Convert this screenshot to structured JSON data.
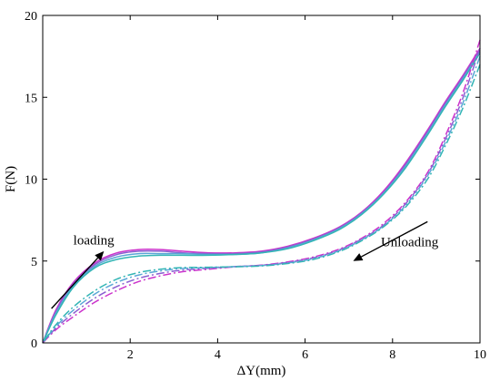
{
  "chart_data": {
    "type": "line",
    "xlabel": "ΔY(mm)",
    "ylabel": "F(N)",
    "xlim": [
      0,
      10
    ],
    "ylim": [
      0,
      20
    ],
    "x_ticks": [
      2,
      4,
      6,
      8,
      10
    ],
    "y_ticks": [
      0,
      5,
      10,
      15,
      20
    ],
    "x_tick_labels": [
      "2",
      "4",
      "6",
      "8",
      "10"
    ],
    "y_tick_labels": [
      "0",
      "5",
      "10",
      "15",
      "20"
    ],
    "origin_label": "0",
    "grid": false,
    "annotations": [
      {
        "text": "loading",
        "at": [
          0.7,
          6.0
        ]
      },
      {
        "text": "Unloading",
        "at": [
          9.05,
          5.9
        ]
      }
    ],
    "arrows": [
      {
        "name": "loading",
        "from": [
          0.2,
          2.1
        ],
        "to": [
          1.4,
          5.6
        ]
      },
      {
        "name": "unloading",
        "from": [
          8.8,
          7.4
        ],
        "to": [
          7.1,
          5.0
        ]
      }
    ],
    "series": [
      {
        "kind": "loading",
        "style": "solid",
        "color": "#cc33cc",
        "x": [
          0,
          0.3,
          0.7,
          1.2,
          1.7,
          2.2,
          2.7,
          3.2,
          3.8,
          4.4,
          5.0,
          5.6,
          6.2,
          6.8,
          7.3,
          7.8,
          8.3,
          8.8,
          9.2,
          9.6,
          10.0
        ],
        "y": [
          0,
          2.0,
          3.7,
          4.9,
          5.5,
          5.7,
          5.7,
          5.6,
          5.5,
          5.5,
          5.6,
          5.9,
          6.4,
          7.1,
          8.0,
          9.3,
          11.0,
          13.0,
          14.7,
          16.3,
          18.0
        ]
      },
      {
        "kind": "loading",
        "style": "solid",
        "color": "#8a5fd0",
        "x": [
          0,
          0.3,
          0.7,
          1.2,
          1.7,
          2.2,
          2.7,
          3.2,
          3.8,
          4.4,
          5.0,
          5.6,
          6.2,
          6.8,
          7.3,
          7.8,
          8.3,
          8.8,
          9.2,
          9.6,
          10.0
        ],
        "y": [
          0,
          1.9,
          3.6,
          4.8,
          5.4,
          5.6,
          5.6,
          5.5,
          5.45,
          5.45,
          5.55,
          5.85,
          6.35,
          7.05,
          7.95,
          9.2,
          10.9,
          12.9,
          14.6,
          16.2,
          17.9
        ]
      },
      {
        "kind": "loading",
        "style": "solid",
        "color": "#5aa6d6",
        "x": [
          0,
          0.3,
          0.7,
          1.2,
          1.7,
          2.2,
          2.7,
          3.2,
          3.8,
          4.4,
          5.0,
          5.6,
          6.2,
          6.8,
          7.3,
          7.8,
          8.3,
          8.8,
          9.2,
          9.6,
          10.0
        ],
        "y": [
          0,
          1.8,
          3.5,
          4.7,
          5.25,
          5.45,
          5.45,
          5.45,
          5.4,
          5.4,
          5.5,
          5.8,
          6.3,
          7.0,
          7.9,
          9.15,
          10.8,
          12.8,
          14.5,
          16.1,
          17.8
        ]
      },
      {
        "kind": "loading",
        "style": "solid",
        "color": "#33b5b5",
        "x": [
          0,
          0.3,
          0.7,
          1.2,
          1.7,
          2.2,
          2.7,
          3.2,
          3.8,
          4.4,
          5.0,
          5.6,
          6.2,
          6.8,
          7.3,
          7.8,
          8.3,
          8.8,
          9.2,
          9.6,
          10.0
        ],
        "y": [
          0,
          1.7,
          3.4,
          4.6,
          5.1,
          5.3,
          5.35,
          5.35,
          5.35,
          5.4,
          5.5,
          5.75,
          6.25,
          6.95,
          7.85,
          9.1,
          10.7,
          12.7,
          14.4,
          16.0,
          17.7
        ]
      },
      {
        "kind": "unloading",
        "style": "dashdot",
        "color": "#cc33cc",
        "x": [
          10.0,
          9.6,
          9.2,
          8.8,
          8.3,
          7.8,
          7.3,
          6.8,
          6.2,
          5.6,
          5.0,
          4.4,
          3.8,
          3.2,
          2.7,
          2.2,
          1.7,
          1.2,
          0.7,
          0.3,
          0
        ],
        "y": [
          18.5,
          15.2,
          12.6,
          10.4,
          8.6,
          7.3,
          6.4,
          5.75,
          5.25,
          4.95,
          4.75,
          4.65,
          4.5,
          4.35,
          4.1,
          3.75,
          3.2,
          2.5,
          1.6,
          0.8,
          0
        ]
      },
      {
        "kind": "unloading",
        "style": "dashdot",
        "color": "#8a5fd0",
        "x": [
          10.0,
          9.6,
          9.2,
          8.8,
          8.3,
          7.8,
          7.3,
          6.8,
          6.2,
          5.6,
          5.0,
          4.4,
          3.8,
          3.2,
          2.7,
          2.2,
          1.7,
          1.2,
          0.7,
          0.3,
          0
        ],
        "y": [
          18.0,
          14.9,
          12.4,
          10.3,
          8.5,
          7.2,
          6.35,
          5.7,
          5.2,
          4.92,
          4.74,
          4.66,
          4.56,
          4.45,
          4.25,
          3.95,
          3.45,
          2.75,
          1.8,
          0.9,
          0
        ]
      },
      {
        "kind": "unloading",
        "style": "dashdot",
        "color": "#5aa6d6",
        "x": [
          10.0,
          9.6,
          9.2,
          8.8,
          8.3,
          7.8,
          7.3,
          6.8,
          6.2,
          5.6,
          5.0,
          4.4,
          3.8,
          3.2,
          2.7,
          2.2,
          1.7,
          1.2,
          0.7,
          0.3,
          0
        ],
        "y": [
          17.5,
          14.6,
          12.2,
          10.2,
          8.4,
          7.15,
          6.3,
          5.65,
          5.15,
          4.88,
          4.72,
          4.66,
          4.6,
          4.55,
          4.4,
          4.15,
          3.7,
          3.0,
          2.0,
          1.0,
          0
        ]
      },
      {
        "kind": "unloading",
        "style": "dashdot",
        "color": "#33b5b5",
        "x": [
          10.0,
          9.6,
          9.2,
          8.8,
          8.3,
          7.8,
          7.3,
          6.8,
          6.2,
          5.6,
          5.0,
          4.4,
          3.8,
          3.2,
          2.7,
          2.2,
          1.7,
          1.2,
          0.7,
          0.3,
          0
        ],
        "y": [
          17.0,
          14.3,
          12.0,
          10.0,
          8.3,
          7.1,
          6.25,
          5.6,
          5.1,
          4.85,
          4.7,
          4.65,
          4.62,
          4.6,
          4.5,
          4.3,
          3.9,
          3.2,
          2.2,
          1.1,
          0
        ]
      }
    ]
  }
}
